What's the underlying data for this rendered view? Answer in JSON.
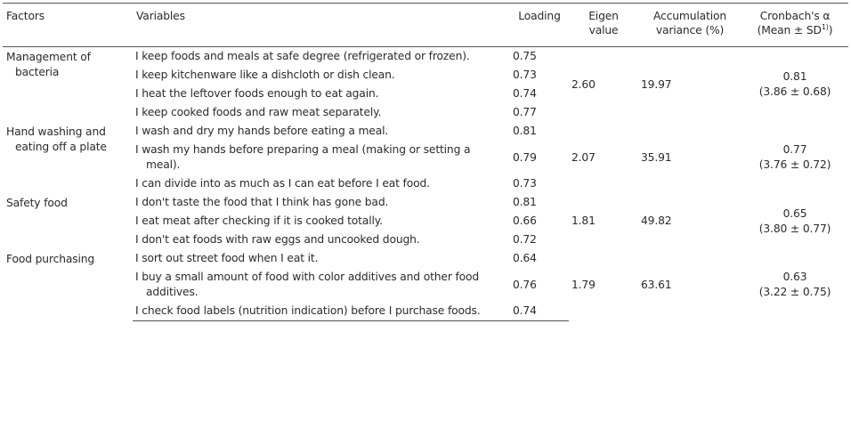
{
  "headers": {
    "factors": "Factors",
    "variables": "Variables",
    "loading": "Loading",
    "eigen_1": "Eigen",
    "eigen_2": "value",
    "accum_1": "Accumulation",
    "accum_2": "variance (%)",
    "cron_1": "Cronbach's α",
    "cron_2": "(Mean ± SD",
    "cron_sup": "1)",
    "cron_3": ")"
  },
  "groups": [
    {
      "factor_1": "Management of",
      "factor_2": "bacteria",
      "eigen": "2.60",
      "accum": "19.97",
      "alpha": "0.81",
      "mean_sd": "(3.86 ± 0.68)",
      "rows": [
        {
          "variable": "I keep foods and meals at safe degree (refrigerated or frozen).",
          "loading": "0.75"
        },
        {
          "variable": "I keep kitchenware like a dishcloth or dish clean.",
          "loading": "0.73"
        },
        {
          "variable": "I heat the leftover foods enough to eat again.",
          "loading": "0.74"
        },
        {
          "variable": "I keep cooked foods and raw meat separately.",
          "loading": "0.77"
        }
      ]
    },
    {
      "factor_1": "Hand washing and",
      "factor_2": "eating off a plate",
      "eigen": "2.07",
      "accum": "35.91",
      "alpha": "0.77",
      "mean_sd": "(3.76 ± 0.72)",
      "rows": [
        {
          "variable": "I wash and dry my hands before eating a meal.",
          "loading": "0.81"
        },
        {
          "variable": "I wash my hands before preparing a meal (making or setting a meal).",
          "loading": "0.79"
        },
        {
          "variable": "I can divide into as much as I can eat before I eat food.",
          "loading": "0.73"
        }
      ]
    },
    {
      "factor_1": "Safety food",
      "factor_2": "",
      "eigen": "1.81",
      "accum": "49.82",
      "alpha": "0.65",
      "mean_sd": "(3.80 ± 0.77)",
      "rows": [
        {
          "variable": "I don't taste the food that I think has gone bad.",
          "loading": "0.81"
        },
        {
          "variable": "I eat meat after checking if it is cooked totally.",
          "loading": "0.66"
        },
        {
          "variable": "I don't eat foods with raw eggs and uncooked dough.",
          "loading": "0.72"
        }
      ]
    },
    {
      "factor_1": "Food purchasing",
      "factor_2": "",
      "eigen": "1.79",
      "accum": "63.61",
      "alpha": "0.63",
      "mean_sd": "(3.22 ± 0.75)",
      "rows": [
        {
          "variable": "I sort out street food when I eat it.",
          "loading": "0.64"
        },
        {
          "variable": "I buy a small amount of food with color additives and other food additives.",
          "loading": "0.76"
        },
        {
          "variable": "I check food labels (nutrition indication) before I purchase foods.",
          "loading": "0.74"
        }
      ]
    }
  ]
}
